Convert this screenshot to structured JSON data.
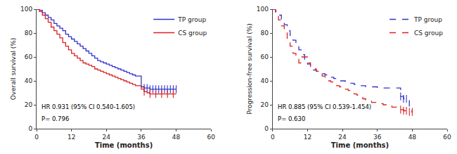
{
  "chart_data": [
    {
      "type": "step",
      "xlabel": "Time (months)",
      "ylabel": "Overall survival (%)",
      "xlim": [
        0,
        60
      ],
      "ylim": [
        0,
        100
      ],
      "xticks": [
        0,
        12,
        24,
        36,
        48,
        60
      ],
      "yticks": [
        0,
        20,
        40,
        60,
        80,
        100
      ],
      "grid": false,
      "legend": "upper right",
      "annotations": [
        "HR 0.931 (95% CI 0.540-1.605)",
        "P= 0.796"
      ],
      "series": [
        {
          "name": "TP group",
          "color": "#3333cc",
          "line_style": "solid",
          "x": [
            0,
            1,
            2,
            3,
            4,
            5,
            6,
            7,
            8,
            9,
            10,
            11,
            12,
            13,
            14,
            15,
            16,
            17,
            18,
            19,
            20,
            21,
            22,
            23,
            24,
            25,
            26,
            27,
            28,
            29,
            30,
            31,
            32,
            33,
            34,
            35,
            36,
            37,
            38,
            39,
            40,
            41,
            42,
            43,
            44,
            45,
            46,
            47,
            48
          ],
          "values": [
            100,
            99,
            97,
            95,
            93,
            91,
            88,
            86,
            84,
            82,
            79,
            77,
            75,
            73,
            71,
            69,
            67,
            65,
            63,
            61,
            59,
            57,
            56,
            55,
            54,
            53,
            52,
            51,
            50,
            49,
            48,
            47,
            46,
            45,
            44,
            44,
            35,
            34,
            34,
            33,
            33,
            33,
            33,
            33,
            33,
            33,
            33,
            33,
            33
          ],
          "censor_x": [
            37,
            38,
            39,
            40,
            41,
            42,
            43,
            44,
            45,
            46,
            47,
            48
          ]
        },
        {
          "name": "CS group",
          "color": "#dd2222",
          "line_style": "solid",
          "x": [
            0,
            1,
            2,
            3,
            4,
            5,
            6,
            7,
            8,
            9,
            10,
            11,
            12,
            13,
            14,
            15,
            16,
            17,
            18,
            19,
            20,
            21,
            22,
            23,
            24,
            25,
            26,
            27,
            28,
            29,
            30,
            31,
            32,
            33,
            34,
            35,
            36,
            37,
            38,
            39,
            40,
            41,
            42,
            43,
            44,
            45,
            46,
            47,
            48
          ],
          "values": [
            100,
            98,
            95,
            92,
            89,
            85,
            82,
            79,
            76,
            72,
            69,
            66,
            63,
            61,
            59,
            57,
            55,
            54,
            53,
            52,
            50,
            49,
            48,
            47,
            46,
            45,
            44,
            43,
            42,
            41,
            40,
            39,
            38,
            37,
            36,
            36,
            33,
            31,
            30,
            29,
            29,
            29,
            29,
            29,
            29,
            29,
            29,
            29,
            29
          ],
          "censor_x": [
            37,
            39,
            41,
            43,
            45,
            47
          ]
        }
      ]
    },
    {
      "type": "step",
      "xlabel": "Time (months)",
      "ylabel": "Progression-free survival (%)",
      "xlim": [
        0,
        60
      ],
      "ylim": [
        0,
        100
      ],
      "xticks": [
        0,
        12,
        24,
        36,
        48,
        60
      ],
      "yticks": [
        0,
        20,
        40,
        60,
        80,
        100
      ],
      "grid": false,
      "legend": "upper right",
      "annotations": [
        "HR 0.885 (95% CI 0.539-1.454)",
        "P= 0.630"
      ],
      "series": [
        {
          "name": "TP group",
          "color": "#3333cc",
          "line_style": "dashed",
          "x": [
            0,
            1,
            2,
            3,
            4,
            5,
            6,
            7,
            8,
            9,
            10,
            11,
            12,
            13,
            14,
            15,
            16,
            17,
            18,
            19,
            20,
            21,
            22,
            23,
            24,
            25,
            26,
            27,
            28,
            29,
            30,
            31,
            32,
            33,
            34,
            35,
            36,
            37,
            38,
            39,
            40,
            41,
            42,
            43,
            44,
            45,
            46,
            47,
            48
          ],
          "values": [
            100,
            98,
            95,
            91,
            87,
            82,
            78,
            74,
            70,
            66,
            62,
            58,
            54,
            51,
            49,
            48,
            47,
            46,
            45,
            44,
            43,
            42,
            41,
            40,
            40,
            39,
            38,
            38,
            37,
            37,
            36,
            36,
            35,
            35,
            35,
            35,
            34,
            34,
            34,
            34,
            34,
            34,
            34,
            34,
            27,
            25,
            25,
            15,
            15
          ],
          "censor_x": [
            44,
            45,
            46
          ]
        },
        {
          "name": "CS group",
          "color": "#dd2222",
          "line_style": "dashed",
          "x": [
            0,
            1,
            2,
            3,
            4,
            5,
            6,
            7,
            8,
            9,
            10,
            11,
            12,
            13,
            14,
            15,
            16,
            17,
            18,
            19,
            20,
            21,
            22,
            23,
            24,
            25,
            26,
            27,
            28,
            29,
            30,
            31,
            32,
            33,
            34,
            35,
            36,
            37,
            38,
            39,
            40,
            41,
            42,
            43,
            44,
            45,
            46,
            47,
            48
          ],
          "values": [
            100,
            96,
            91,
            86,
            80,
            75,
            69,
            63,
            58,
            55,
            60,
            60,
            55,
            52,
            50,
            48,
            46,
            44,
            42,
            40,
            39,
            38,
            36,
            35,
            34,
            33,
            32,
            30,
            29,
            28,
            26,
            25,
            24,
            23,
            22,
            22,
            21,
            21,
            20,
            19,
            19,
            18,
            18,
            17,
            16,
            15,
            15,
            14,
            14
          ],
          "censor_x": [
            44,
            45,
            46,
            47,
            48
          ]
        }
      ]
    }
  ]
}
